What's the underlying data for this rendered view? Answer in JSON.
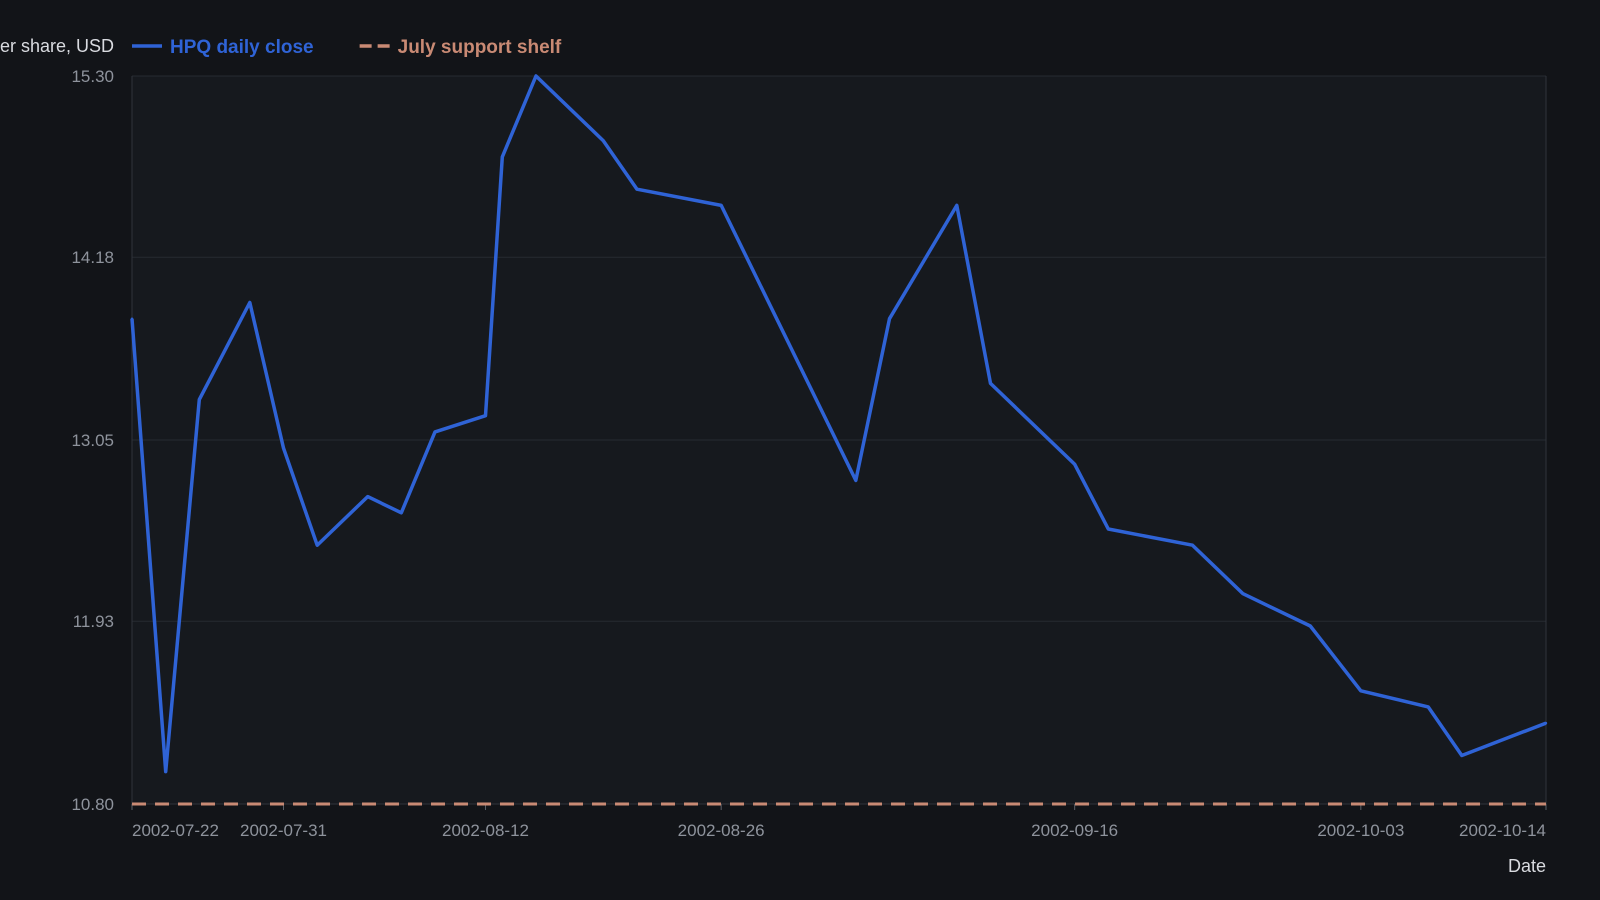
{
  "chart_data": {
    "type": "line",
    "xlabel": "Date",
    "ylabel": "Price per share, USD",
    "ylim": [
      10.8,
      15.3
    ],
    "y_ticks": [
      "10.80",
      "11.93",
      "13.05",
      "14.18",
      "15.30"
    ],
    "x_ticks": [
      "2002-07-22",
      "2002-07-31",
      "2002-08-12",
      "2002-08-26",
      "2002-09-16",
      "2002-10-03",
      "2002-10-14"
    ],
    "xlim": [
      "2002-07-22",
      "2002-10-14"
    ],
    "grid": true,
    "legend_position": "top-left",
    "series": [
      {
        "name": "HPQ daily close",
        "color": "#2f63d6",
        "style": "solid",
        "x": [
          "2002-07-22",
          "2002-07-24",
          "2002-07-26",
          "2002-07-29",
          "2002-07-31",
          "2002-08-02",
          "2002-08-05",
          "2002-08-07",
          "2002-08-09",
          "2002-08-12",
          "2002-08-13",
          "2002-08-15",
          "2002-08-19",
          "2002-08-21",
          "2002-08-26",
          "2002-09-03",
          "2002-09-05",
          "2002-09-09",
          "2002-09-11",
          "2002-09-16",
          "2002-09-18",
          "2002-09-23",
          "2002-09-26",
          "2002-09-30",
          "2002-10-03",
          "2002-10-07",
          "2002-10-09",
          "2002-10-14"
        ],
        "values": [
          13.8,
          11.0,
          13.3,
          13.9,
          13.0,
          12.4,
          12.7,
          12.6,
          13.1,
          13.2,
          14.8,
          15.3,
          14.9,
          14.6,
          14.5,
          12.8,
          13.8,
          14.5,
          13.4,
          12.9,
          12.5,
          12.4,
          12.1,
          11.9,
          11.5,
          11.4,
          11.1,
          11.3
        ]
      },
      {
        "name": "July support shelf",
        "color": "#c98a74",
        "style": "dashed",
        "x": [
          "2002-07-22",
          "2002-10-14"
        ],
        "values": [
          10.8,
          10.8
        ]
      }
    ]
  }
}
